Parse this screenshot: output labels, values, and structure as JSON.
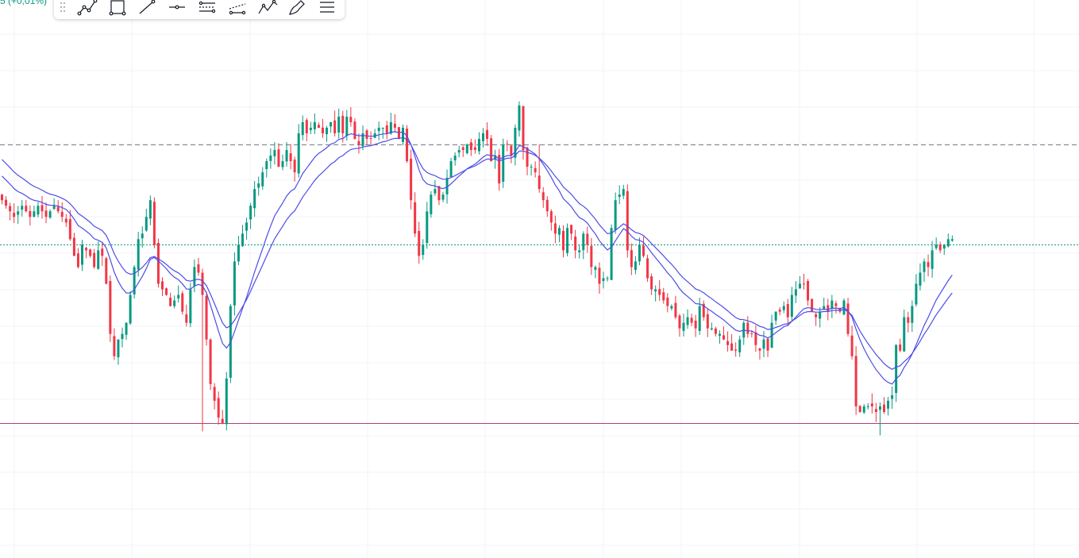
{
  "symbol_change": {
    "text": "5 (+0,01%)",
    "color": "#089981"
  },
  "toolbar": {
    "tools": [
      "path-tool-icon",
      "rectangle-tool-icon",
      "trend-line-tool-icon",
      "horizontal-ray-tool-icon",
      "parallel-channel-tool-icon",
      "regression-trend-tool-icon",
      "elliott-wave-tool-icon",
      "brush-tool-icon",
      "more-tools-icon"
    ]
  },
  "chart_data": {
    "type": "candlestick",
    "title": "",
    "xlabel": "",
    "ylabel": "",
    "ylim": [
      0,
      100
    ],
    "grid": true,
    "legend": "none",
    "colors": {
      "up": "#089981",
      "down": "#f23645",
      "moving_averages": "#4d4de8",
      "resistance_line": "#787b86",
      "support_line": "#b04075",
      "last_price_line": "#089981"
    },
    "resistance_level": 82,
    "support_level": 32,
    "last_price_level": 64,
    "closes": [
      72,
      71,
      70,
      69,
      70,
      71,
      70,
      69,
      70,
      71,
      70,
      69,
      70,
      71,
      70,
      69,
      68,
      65,
      62,
      60,
      64,
      63,
      62,
      60,
      63,
      62,
      57,
      48,
      44,
      47,
      48,
      50,
      55,
      60,
      65,
      66,
      69,
      72,
      64,
      57,
      56,
      55,
      53,
      54,
      55,
      52,
      50,
      56,
      60,
      59,
      55,
      47,
      39,
      36,
      33,
      32,
      40,
      53,
      61,
      64,
      66,
      68,
      71,
      74,
      75,
      77,
      79,
      80,
      81,
      78,
      79,
      81,
      79,
      77,
      84,
      86,
      84,
      85,
      86,
      85,
      84,
      85,
      86,
      84,
      87,
      84,
      87,
      86,
      83,
      82,
      84,
      83,
      83,
      84,
      85,
      85,
      84,
      86,
      85,
      83,
      85,
      79,
      72,
      66,
      62,
      64,
      70,
      73,
      74,
      72,
      73,
      76,
      79,
      80,
      81,
      81,
      82,
      81,
      81,
      83,
      84,
      83,
      79,
      80,
      75,
      82,
      82,
      80,
      85,
      89,
      81,
      78,
      78,
      77,
      74,
      72,
      70,
      68,
      66,
      67,
      63,
      67,
      66,
      63,
      63,
      66,
      64,
      60,
      60,
      57,
      58,
      58,
      67,
      72,
      73,
      74,
      63,
      60,
      61,
      64,
      62,
      58,
      56,
      56,
      55,
      54,
      53,
      53,
      51,
      49,
      50,
      51,
      50,
      49,
      53,
      51,
      49,
      49,
      48,
      48,
      47,
      46,
      45,
      45,
      47,
      50,
      48,
      48,
      46,
      45,
      47,
      45,
      50,
      52,
      52,
      53,
      51,
      55,
      56,
      57,
      57,
      54,
      52,
      51,
      52,
      53,
      52,
      54,
      53,
      52,
      54,
      48,
      44,
      35,
      34,
      35,
      35,
      35,
      34,
      35,
      34,
      36,
      37,
      46,
      45,
      51,
      50,
      53,
      57,
      59,
      61,
      60,
      63,
      64,
      63,
      64,
      65,
      65
    ]
  }
}
